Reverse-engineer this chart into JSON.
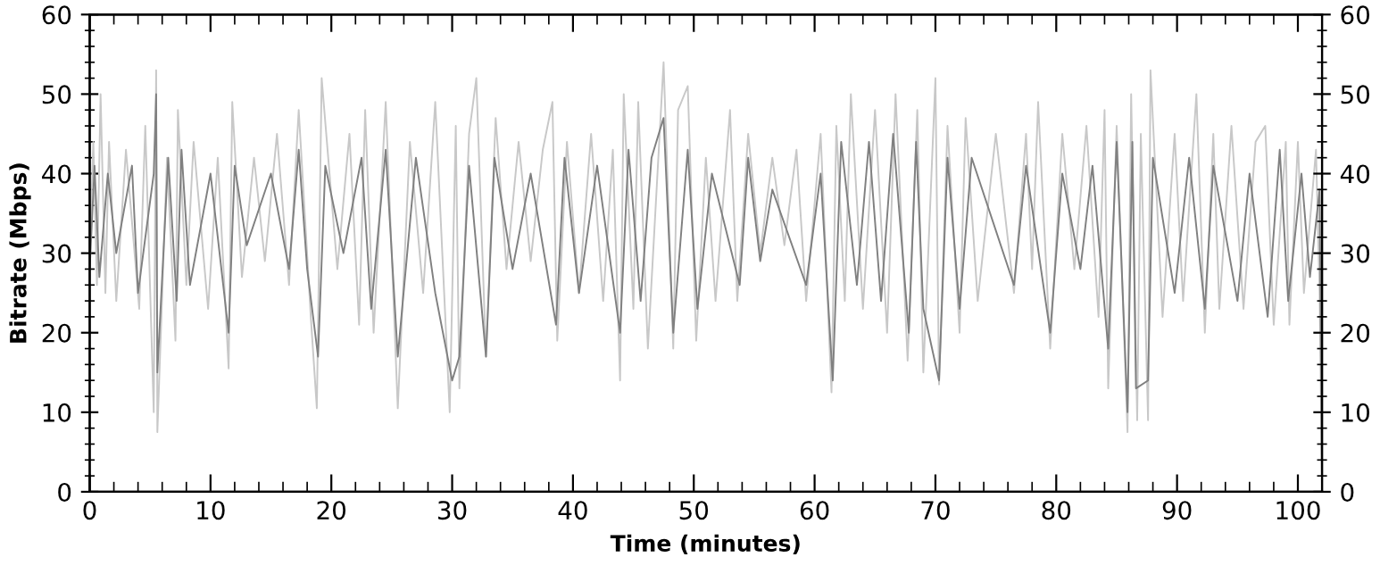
{
  "chart_data": {
    "type": "line",
    "xlabel": "Time (minutes)",
    "ylabel": "Bitrate (Mbps)",
    "xlim": [
      0,
      102
    ],
    "xticks": [
      0,
      10,
      20,
      30,
      40,
      50,
      60,
      70,
      80,
      90,
      100
    ],
    "ylim": [
      0,
      60
    ],
    "yticks": [
      0,
      10,
      20,
      30,
      40,
      50,
      60
    ],
    "y2lim": [
      0,
      60
    ],
    "y2ticks": [
      0,
      10,
      20,
      30,
      40,
      50,
      60
    ],
    "grid": false,
    "marker": "none",
    "line_style": "solid",
    "series": [
      {
        "color": "#c8c8c8",
        "x": [
          0,
          0.3,
          0.6,
          0.9,
          1.3,
          1.6,
          2.2,
          3,
          4.1,
          4.6,
          5.3,
          5.5,
          5.6,
          6.4,
          7.1,
          7.3,
          8,
          8.6,
          9.8,
          10.6,
          11.5,
          11.8,
          12.6,
          13.6,
          14.5,
          15.5,
          16.5,
          17.3,
          18.3,
          18.8,
          19.2,
          20.5,
          21.5,
          22.3,
          22.8,
          23.5,
          24.5,
          25.5,
          26.5,
          27.6,
          28.6,
          29.8,
          30.3,
          30.6,
          31.4,
          32,
          32.8,
          33.6,
          34.5,
          35.5,
          36.5,
          37.5,
          38.3,
          38.7,
          39.5,
          40.5,
          41.5,
          42.5,
          43.3,
          43.9,
          44.2,
          45,
          45.4,
          46.2,
          47.5,
          48.3,
          48.7,
          49.5,
          50.2,
          51,
          51.8,
          53,
          53.6,
          54.5,
          55.5,
          56.5,
          57.5,
          58.5,
          59.3,
          60.5,
          61.4,
          61.8,
          62.5,
          63,
          64,
          65,
          66,
          66.7,
          67.7,
          68.5,
          69,
          70,
          70.3,
          71,
          72,
          72.5,
          73.5,
          75,
          76.5,
          77.5,
          78,
          78.5,
          79.5,
          80.5,
          81.5,
          82.5,
          83.5,
          84,
          84.3,
          85,
          85.9,
          86.2,
          86.7,
          87,
          87.6,
          87.8,
          88.8,
          89.8,
          90.5,
          91.6,
          92.3,
          93,
          93.5,
          94.5,
          95.5,
          96.5,
          97.3,
          98,
          99,
          99.3,
          100,
          100.5,
          101.5,
          101.8,
          102
        ],
        "values": [
          30,
          44,
          26,
          50,
          25,
          44,
          24,
          43,
          23,
          46,
          10,
          53,
          7.5,
          42,
          19,
          48,
          26,
          44,
          23,
          42,
          15.5,
          49,
          27,
          42,
          29,
          45,
          26,
          48,
          22,
          10.5,
          52,
          28,
          45,
          21,
          48,
          20,
          49,
          10.5,
          44,
          25,
          49,
          10,
          46,
          13,
          45,
          52,
          17,
          47,
          28,
          44,
          29,
          43,
          49,
          19,
          44,
          25,
          45,
          24,
          43,
          14,
          50,
          23,
          49,
          18,
          54,
          18,
          48,
          51,
          19,
          42,
          24,
          48,
          24,
          45,
          30,
          42,
          31,
          43,
          24,
          45,
          12.5,
          46,
          24,
          50,
          23,
          48,
          20,
          50,
          16.5,
          48,
          15,
          52,
          13.5,
          46,
          20,
          47,
          24,
          45,
          25,
          45,
          28,
          49,
          18,
          45,
          28,
          46,
          22,
          48,
          13,
          46,
          7.5,
          50,
          9,
          45,
          9,
          53,
          22,
          45,
          24,
          50,
          20,
          45,
          23,
          46,
          23,
          44,
          46,
          21,
          44,
          21,
          44,
          25,
          43,
          25,
          0
        ]
      },
      {
        "color": "#808080",
        "x": [
          0,
          0.4,
          0.8,
          1.5,
          2.2,
          3.5,
          4,
          5.3,
          5.5,
          5.6,
          6.5,
          7.2,
          7.6,
          8.3,
          10,
          11.5,
          12,
          13,
          15,
          16.5,
          17.3,
          18,
          18.9,
          19.5,
          21,
          22.5,
          23.3,
          24.5,
          25.5,
          27,
          28.6,
          30,
          30.6,
          31.4,
          32.8,
          33.5,
          35,
          36.5,
          38.6,
          39.3,
          40.5,
          42,
          43.9,
          44.6,
          45.6,
          46.5,
          47.5,
          48.3,
          49.5,
          50.3,
          51.5,
          53.8,
          54.5,
          55.5,
          56.5,
          59.3,
          60.5,
          61.5,
          62.2,
          63.5,
          64.5,
          65.5,
          66.5,
          67.8,
          68.4,
          69,
          70.3,
          71,
          72,
          73,
          76.5,
          77.5,
          79.5,
          80.5,
          82,
          83,
          84.3,
          85,
          85.9,
          86.3,
          86.6,
          87.6,
          88,
          89.8,
          91,
          92.3,
          93,
          95,
          96,
          97.5,
          98.5,
          99.2,
          100.3,
          101,
          101.8,
          102
        ],
        "values": [
          28,
          41,
          27,
          40,
          30,
          41,
          25,
          40,
          50,
          15,
          42,
          24,
          43,
          26,
          40,
          20,
          41,
          31,
          40,
          28,
          43,
          28,
          17,
          41,
          30,
          42,
          23,
          43,
          17,
          42,
          25,
          14,
          17,
          41,
          17,
          42,
          28,
          40,
          21,
          42,
          25,
          41,
          20,
          43,
          24,
          42,
          47,
          20,
          43,
          23,
          40,
          26,
          42,
          29,
          38,
          26,
          40,
          14,
          44,
          26,
          44,
          24,
          45,
          20,
          44,
          23,
          14,
          42,
          23,
          42,
          26,
          41,
          20,
          40,
          28,
          41,
          18,
          44,
          10,
          44,
          13,
          14,
          42,
          25,
          42,
          23,
          41,
          24,
          40,
          22,
          43,
          24,
          40,
          27,
          38,
          0
        ]
      }
    ]
  }
}
